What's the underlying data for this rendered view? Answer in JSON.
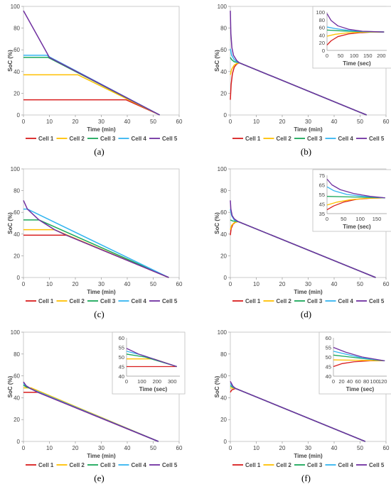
{
  "colors": {
    "Cell 1": "#d81e1e",
    "Cell 2": "#ffc000",
    "Cell 3": "#1aa85a",
    "Cell 4": "#33b5f0",
    "Cell 5": "#7030a0"
  },
  "chart_data": [
    {
      "panel": "(a)",
      "type": "line",
      "xlabel": "Time (min)",
      "ylabel": "SoC (%)",
      "xlim": [
        0,
        60
      ],
      "ylim": [
        0,
        100
      ],
      "xticks": [
        0,
        10,
        20,
        30,
        40,
        50,
        60
      ],
      "yticks": [
        0,
        20,
        40,
        60,
        80,
        100
      ],
      "legend": "bottom",
      "series": [
        {
          "name": "Cell 1",
          "x": [
            0,
            39.5,
            52.5
          ],
          "y": [
            14,
            14,
            0
          ]
        },
        {
          "name": "Cell 2",
          "x": [
            0,
            21,
            52.5
          ],
          "y": [
            37,
            37,
            0
          ]
        },
        {
          "name": "Cell 3",
          "x": [
            0,
            9.5,
            52.5
          ],
          "y": [
            53,
            53,
            0
          ]
        },
        {
          "name": "Cell 4",
          "x": [
            0,
            9,
            10,
            52.5
          ],
          "y": [
            55,
            55,
            53.5,
            0
          ]
        },
        {
          "name": "Cell 5",
          "x": [
            0,
            10,
            52.5
          ],
          "y": [
            96,
            53,
            0
          ]
        }
      ]
    },
    {
      "panel": "(b)",
      "type": "line",
      "xlabel": "Time (min)",
      "ylabel": "SoC (%)",
      "xlim": [
        0,
        60
      ],
      "ylim": [
        0,
        100
      ],
      "xticks": [
        0,
        10,
        20,
        30,
        40,
        50,
        60
      ],
      "yticks": [
        0,
        20,
        40,
        60,
        80,
        100
      ],
      "legend": "bottom",
      "series": [
        {
          "name": "Cell 1",
          "x": [
            0,
            0.3,
            0.8,
            1.5,
            2.5,
            3.5,
            52.5
          ],
          "y": [
            14,
            28,
            38,
            44,
            47,
            48,
            0
          ]
        },
        {
          "name": "Cell 2",
          "x": [
            0,
            0.5,
            1.5,
            2.5,
            3.5,
            52.5
          ],
          "y": [
            37,
            42,
            46,
            47.5,
            48,
            0
          ]
        },
        {
          "name": "Cell 3",
          "x": [
            0,
            0.5,
            1.5,
            2.5,
            3.5,
            52.5
          ],
          "y": [
            53,
            51,
            49,
            48.5,
            48,
            0
          ]
        },
        {
          "name": "Cell 4",
          "x": [
            0,
            0.5,
            1.5,
            2.5,
            3.5,
            52.5
          ],
          "y": [
            61,
            55,
            51,
            49,
            48,
            0
          ]
        },
        {
          "name": "Cell 5",
          "x": [
            0,
            0.2,
            0.6,
            1.2,
            2.5,
            3.5,
            52.5
          ],
          "y": [
            96,
            75,
            62,
            55,
            50,
            48,
            0
          ]
        }
      ],
      "inset": {
        "xlabel": "Time (sec)",
        "xlim": [
          0,
          220
        ],
        "ylim": [
          0,
          100
        ],
        "xticks": [
          0,
          50,
          100,
          150,
          200
        ],
        "yticks": [
          0,
          20,
          40,
          60,
          80,
          100
        ],
        "series": [
          {
            "name": "Cell 1",
            "x": [
              0,
              15,
              40,
              80,
              120,
              160,
              210
            ],
            "y": [
              14,
              25,
              36,
              43,
              46,
              47.5,
              48
            ]
          },
          {
            "name": "Cell 2",
            "x": [
              0,
              30,
              80,
              130,
              210
            ],
            "y": [
              37,
              42,
              46,
              47.5,
              48
            ]
          },
          {
            "name": "Cell 3",
            "x": [
              0,
              50,
              120,
              210
            ],
            "y": [
              53,
              51,
              49,
              48
            ]
          },
          {
            "name": "Cell 4",
            "x": [
              0,
              30,
              80,
              130,
              210
            ],
            "y": [
              61,
              57,
              52,
              49.5,
              48
            ]
          },
          {
            "name": "Cell 5",
            "x": [
              0,
              15,
              40,
              80,
              130,
              210
            ],
            "y": [
              96,
              78,
              64,
              55,
              50,
              48
            ]
          }
        ]
      }
    },
    {
      "panel": "(c)",
      "type": "line",
      "xlabel": "Time (min)",
      "ylabel": "SoC (%)",
      "xlim": [
        0,
        60
      ],
      "ylim": [
        0,
        100
      ],
      "xticks": [
        0,
        10,
        20,
        30,
        40,
        50,
        60
      ],
      "yticks": [
        0,
        20,
        40,
        60,
        80,
        100
      ],
      "legend": "bottom",
      "series": [
        {
          "name": "Cell 1",
          "x": [
            0,
            16.5,
            56
          ],
          "y": [
            39,
            39,
            0
          ]
        },
        {
          "name": "Cell 2",
          "x": [
            0,
            12,
            56
          ],
          "y": [
            44,
            44,
            0
          ]
        },
        {
          "name": "Cell 3",
          "x": [
            0,
            6,
            56
          ],
          "y": [
            53,
            53,
            0
          ]
        },
        {
          "name": "Cell 4",
          "x": [
            0,
            1.5,
            56
          ],
          "y": [
            63,
            63,
            0
          ]
        },
        {
          "name": "Cell 5",
          "x": [
            0,
            1.5,
            6,
            12,
            16.5,
            56
          ],
          "y": [
            71,
            63,
            53,
            44,
            39,
            0
          ]
        }
      ]
    },
    {
      "panel": "(d)",
      "type": "line",
      "xlabel": "Time (min)",
      "ylabel": "SoC (%)",
      "xlim": [
        0,
        60
      ],
      "ylim": [
        0,
        100
      ],
      "xticks": [
        0,
        10,
        20,
        30,
        40,
        50,
        60
      ],
      "yticks": [
        0,
        20,
        40,
        60,
        80,
        100
      ],
      "legend": "bottom",
      "series": [
        {
          "name": "Cell 1",
          "x": [
            0,
            0.3,
            1,
            2,
            3,
            56
          ],
          "y": [
            39,
            45,
            49,
            51,
            51.5,
            0
          ]
        },
        {
          "name": "Cell 2",
          "x": [
            0,
            0.5,
            1.5,
            3,
            56
          ],
          "y": [
            44,
            48,
            50.5,
            51.5,
            0
          ]
        },
        {
          "name": "Cell 3",
          "x": [
            0,
            1,
            3,
            56
          ],
          "y": [
            53,
            52,
            51.5,
            0
          ]
        },
        {
          "name": "Cell 4",
          "x": [
            0,
            0.5,
            1.5,
            3,
            56
          ],
          "y": [
            63,
            57,
            53,
            51.5,
            0
          ]
        },
        {
          "name": "Cell 5",
          "x": [
            0,
            0.2,
            0.7,
            1.5,
            3,
            56
          ],
          "y": [
            71,
            63,
            57,
            54,
            51.5,
            0
          ]
        }
      ],
      "inset": {
        "xlabel": "Time (sec)",
        "xlim": [
          0,
          180
        ],
        "ylim": [
          35,
          75
        ],
        "xticks": [
          0,
          50,
          100,
          150
        ],
        "yticks": [
          35,
          45,
          55,
          65,
          75
        ],
        "series": [
          {
            "name": "Cell 1",
            "x": [
              0,
              20,
              50,
              90,
              130,
              175
            ],
            "y": [
              39,
              43,
              47,
              50,
              51,
              51.5
            ]
          },
          {
            "name": "Cell 2",
            "x": [
              0,
              30,
              70,
              120,
              175
            ],
            "y": [
              44,
              47,
              49.5,
              51,
              51.5
            ]
          },
          {
            "name": "Cell 3",
            "x": [
              0,
              60,
              120,
              175
            ],
            "y": [
              53,
              52.5,
              52,
              51.5
            ]
          },
          {
            "name": "Cell 4",
            "x": [
              0,
              20,
              60,
              110,
              175
            ],
            "y": [
              63,
              59,
              55,
              53,
              51.5
            ]
          },
          {
            "name": "Cell 5",
            "x": [
              0,
              15,
              40,
              80,
              130,
              175
            ],
            "y": [
              71,
              65,
              60,
              56,
              53,
              51.5
            ]
          }
        ]
      }
    },
    {
      "panel": "(e)",
      "type": "line",
      "xlabel": "Time (min)",
      "ylabel": "SoC (%)",
      "xlim": [
        0,
        60
      ],
      "ylim": [
        0,
        100
      ],
      "xticks": [
        0,
        10,
        20,
        30,
        40,
        50,
        60
      ],
      "yticks": [
        0,
        20,
        40,
        60,
        80,
        100
      ],
      "legend": "bottom",
      "series": [
        {
          "name": "Cell 1",
          "x": [
            0,
            5.5,
            52
          ],
          "y": [
            45,
            45,
            0
          ]
        },
        {
          "name": "Cell 2",
          "x": [
            0,
            3,
            52
          ],
          "y": [
            49,
            49,
            0
          ]
        },
        {
          "name": "Cell 3",
          "x": [
            0,
            1,
            3,
            52
          ],
          "y": [
            51.5,
            50,
            48,
            0
          ]
        },
        {
          "name": "Cell 4",
          "x": [
            0,
            1,
            3,
            52
          ],
          "y": [
            53,
            51,
            48,
            0
          ]
        },
        {
          "name": "Cell 5",
          "x": [
            0,
            1,
            3,
            5.5,
            52
          ],
          "y": [
            54.5,
            51,
            48,
            45,
            0
          ]
        }
      ],
      "inset": {
        "xlabel": "Time (sec)",
        "xlim": [
          0,
          350
        ],
        "ylim": [
          40,
          60
        ],
        "xticks": [
          0,
          100,
          200,
          300
        ],
        "yticks": [
          40,
          45,
          50,
          55,
          60
        ],
        "series": [
          {
            "name": "Cell 1",
            "x": [
              0,
              330
            ],
            "y": [
              45,
              45
            ]
          },
          {
            "name": "Cell 2",
            "x": [
              0,
              180,
              330
            ],
            "y": [
              49,
              49,
              45
            ]
          },
          {
            "name": "Cell 3",
            "x": [
              0,
              120,
              330
            ],
            "y": [
              51.5,
              50,
              45
            ]
          },
          {
            "name": "Cell 4",
            "x": [
              0,
              100,
              330
            ],
            "y": [
              53,
              51,
              45
            ]
          },
          {
            "name": "Cell 5",
            "x": [
              0,
              80,
              330
            ],
            "y": [
              54.5,
              51.5,
              45
            ]
          }
        ]
      }
    },
    {
      "panel": "(f)",
      "type": "line",
      "xlabel": "Time (min)",
      "ylabel": "SoC (%)",
      "xlim": [
        0,
        60
      ],
      "ylim": [
        0,
        100
      ],
      "xticks": [
        0,
        10,
        20,
        30,
        40,
        50,
        60
      ],
      "yticks": [
        0,
        20,
        40,
        60,
        80,
        100
      ],
      "legend": "bottom",
      "series": [
        {
          "name": "Cell 1",
          "x": [
            0,
            0.5,
            1.5,
            2,
            52
          ],
          "y": [
            45,
            47,
            48,
            48.5,
            0
          ]
        },
        {
          "name": "Cell 2",
          "x": [
            0,
            1,
            2,
            52
          ],
          "y": [
            49,
            48.8,
            48.5,
            0
          ]
        },
        {
          "name": "Cell 3",
          "x": [
            0,
            1,
            2,
            52
          ],
          "y": [
            51,
            49.5,
            48.5,
            0
          ]
        },
        {
          "name": "Cell 4",
          "x": [
            0,
            1,
            2,
            52
          ],
          "y": [
            53,
            50,
            48.5,
            0
          ]
        },
        {
          "name": "Cell 5",
          "x": [
            0,
            1,
            2,
            52
          ],
          "y": [
            55,
            50.5,
            48.5,
            0
          ]
        }
      ],
      "inset": {
        "xlabel": "Time (sec)",
        "xlim": [
          0,
          130
        ],
        "ylim": [
          40,
          60
        ],
        "xticks": [
          0,
          20,
          40,
          60,
          80,
          100,
          120
        ],
        "yticks": [
          40,
          45,
          50,
          55,
          60
        ],
        "series": [
          {
            "name": "Cell 1",
            "x": [
              0,
              20,
              50,
              90,
              125
            ],
            "y": [
              45,
              46.5,
              47.5,
              48,
              48
            ]
          },
          {
            "name": "Cell 2",
            "x": [
              0,
              60,
              125
            ],
            "y": [
              48.5,
              48.3,
              48
            ]
          },
          {
            "name": "Cell 3",
            "x": [
              0,
              40,
              80,
              125
            ],
            "y": [
              51,
              50,
              49,
              48
            ]
          },
          {
            "name": "Cell 4",
            "x": [
              0,
              30,
              70,
              125
            ],
            "y": [
              53,
              51.5,
              49.5,
              48
            ]
          },
          {
            "name": "Cell 5",
            "x": [
              0,
              30,
              70,
              125
            ],
            "y": [
              55,
              52.5,
              50,
              48
            ]
          }
        ]
      }
    }
  ]
}
